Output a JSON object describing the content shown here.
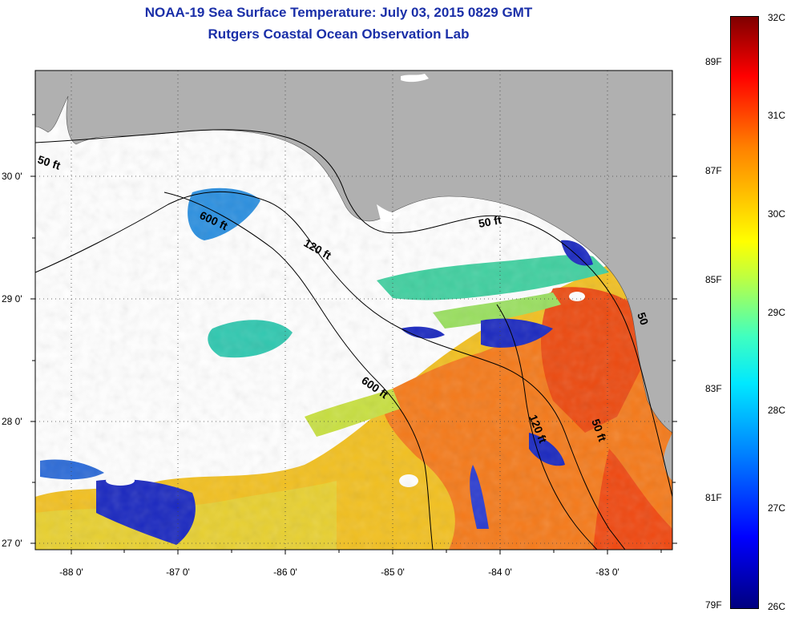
{
  "header": {
    "title": "NOAA-19 Sea Surface Temperature:  July 03, 2015 0829 GMT",
    "subtitle": "Rutgers Coastal Ocean Observation Lab"
  },
  "map": {
    "lon_labels": [
      "-88 0'",
      "-87 0'",
      "-86 0'",
      "-85 0'",
      "-84 0'",
      "-83 0'"
    ],
    "lat_labels": [
      "27 0'",
      "28 0'",
      "29 0'",
      "30 0'"
    ],
    "lon_range": [
      -88.35,
      -82.4
    ],
    "lat_range": [
      26.97,
      30.85
    ],
    "contours": [
      "50 ft",
      "600 ft",
      "120 ft",
      "50 ft",
      "600 ft",
      "120 ft",
      "50 ft",
      "50"
    ],
    "colors": {
      "land": "#b0b0b0",
      "cloud": "#ffffff",
      "warm": "#ff6a00",
      "cool": "#2a3bd0"
    }
  },
  "colorbar": {
    "fahrenheit": [
      "89F",
      "87F",
      "85F",
      "83F",
      "81F",
      "79F"
    ],
    "celsius": [
      "32C",
      "31C",
      "30C",
      "29C",
      "28C",
      "27C",
      "26C"
    ]
  }
}
